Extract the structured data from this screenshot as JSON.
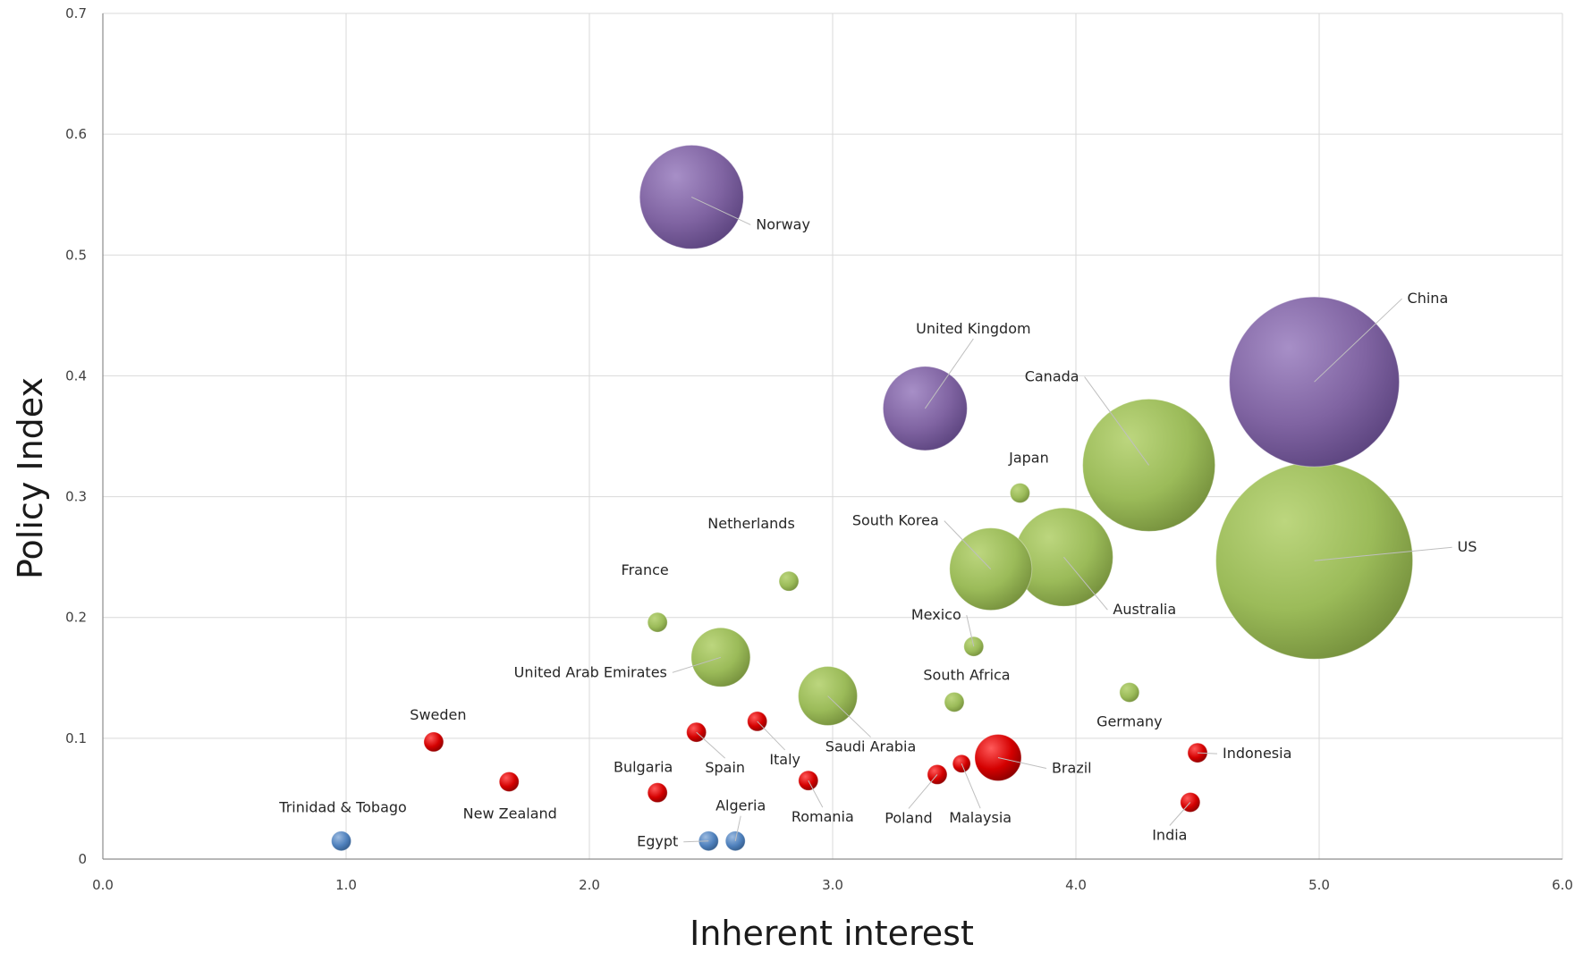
{
  "chart_data": {
    "type": "bubble",
    "xlabel": "Inherent interest",
    "ylabel": "Policy Index",
    "xlim": [
      0,
      6
    ],
    "ylim": [
      0,
      0.7
    ],
    "x_ticks": [
      "0.0",
      "1.0",
      "2.0",
      "3.0",
      "4.0",
      "5.0",
      "6.0"
    ],
    "y_ticks": [
      "0",
      "0.1",
      "0.2",
      "0.3",
      "0.4",
      "0.5",
      "0.6",
      "0.7"
    ],
    "grid": true,
    "colors": {
      "purple": "#8064a2",
      "green": "#9bbb59",
      "red": "#d40000",
      "blue": "#4f81bd"
    },
    "points": [
      {
        "label": "Norway",
        "x": 2.42,
        "y": 0.548,
        "size": 58,
        "color": "purple"
      },
      {
        "label": "China",
        "x": 4.98,
        "y": 0.395,
        "size": 95,
        "color": "purple"
      },
      {
        "label": "United Kingdom",
        "x": 3.38,
        "y": 0.373,
        "size": 47,
        "color": "purple"
      },
      {
        "label": "Canada",
        "x": 4.3,
        "y": 0.326,
        "size": 74,
        "color": "green"
      },
      {
        "label": "US",
        "x": 4.98,
        "y": 0.247,
        "size": 110,
        "color": "green"
      },
      {
        "label": "Australia",
        "x": 3.95,
        "y": 0.25,
        "size": 55,
        "color": "green"
      },
      {
        "label": "South Korea",
        "x": 3.65,
        "y": 0.24,
        "size": 46,
        "color": "green"
      },
      {
        "label": "Japan",
        "x": 3.77,
        "y": 0.303,
        "size": 11,
        "color": "green"
      },
      {
        "label": "Netherlands",
        "x": 2.82,
        "y": 0.23,
        "size": 11,
        "color": "green"
      },
      {
        "label": "France",
        "x": 2.28,
        "y": 0.196,
        "size": 11,
        "color": "green"
      },
      {
        "label": "Mexico",
        "x": 3.58,
        "y": 0.176,
        "size": 11,
        "color": "green"
      },
      {
        "label": "United Arab Emirates",
        "x": 2.54,
        "y": 0.167,
        "size": 33,
        "color": "green"
      },
      {
        "label": "Saudi Arabia",
        "x": 2.98,
        "y": 0.135,
        "size": 33,
        "color": "green"
      },
      {
        "label": "South Africa",
        "x": 3.5,
        "y": 0.13,
        "size": 11,
        "color": "green"
      },
      {
        "label": "Germany",
        "x": 4.22,
        "y": 0.138,
        "size": 11,
        "color": "green"
      },
      {
        "label": "Brazil",
        "x": 3.68,
        "y": 0.084,
        "size": 26,
        "color": "red"
      },
      {
        "label": "Indonesia",
        "x": 4.5,
        "y": 0.088,
        "size": 11,
        "color": "red"
      },
      {
        "label": "India",
        "x": 4.47,
        "y": 0.047,
        "size": 11,
        "color": "red"
      },
      {
        "label": "Malaysia",
        "x": 3.53,
        "y": 0.079,
        "size": 10,
        "color": "red"
      },
      {
        "label": "Poland",
        "x": 3.43,
        "y": 0.07,
        "size": 11,
        "color": "red"
      },
      {
        "label": "Romania",
        "x": 2.9,
        "y": 0.065,
        "size": 11,
        "color": "red"
      },
      {
        "label": "Italy",
        "x": 2.69,
        "y": 0.114,
        "size": 11,
        "color": "red"
      },
      {
        "label": "Spain",
        "x": 2.44,
        "y": 0.105,
        "size": 11,
        "color": "red"
      },
      {
        "label": "Bulgaria",
        "x": 2.28,
        "y": 0.055,
        "size": 11,
        "color": "red"
      },
      {
        "label": "Sweden",
        "x": 1.36,
        "y": 0.097,
        "size": 11,
        "color": "red"
      },
      {
        "label": "New Zealand",
        "x": 1.67,
        "y": 0.064,
        "size": 11,
        "color": "red"
      },
      {
        "label": "Trinidad & Tobago",
        "x": 0.98,
        "y": 0.015,
        "size": 11,
        "color": "blue"
      },
      {
        "label": "Egypt",
        "x": 2.49,
        "y": 0.015,
        "size": 11,
        "color": "blue"
      },
      {
        "label": "Algeria",
        "x": 2.6,
        "y": 0.015,
        "size": 11,
        "color": "blue"
      }
    ]
  }
}
